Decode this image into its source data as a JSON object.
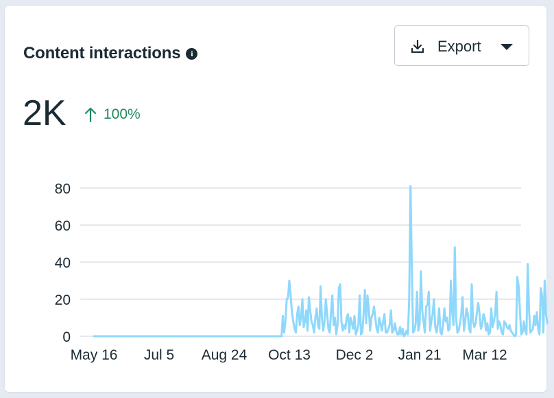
{
  "card": {
    "title": "Content interactions",
    "info_icon": "info-icon",
    "export_label": "Export",
    "export_icon": "download-icon",
    "export_caret_icon": "caret-down-icon"
  },
  "metric": {
    "value": "2K",
    "change": "100%",
    "change_icon": "arrow-up-icon",
    "change_color": "#1f8a5e"
  },
  "colors": {
    "line": "#8fd8fb",
    "grid": "#d7dbe0",
    "text": "#1c2b33"
  },
  "chart_data": {
    "type": "line",
    "title": "",
    "xlabel": "",
    "ylabel": "",
    "ylim": [
      0,
      80
    ],
    "yticks": [
      0,
      20,
      40,
      60,
      80
    ],
    "x_tick_labels": [
      {
        "label": "May 16",
        "day": 0
      },
      {
        "label": "Jul 5",
        "day": 50
      },
      {
        "label": "Aug 24",
        "day": 100
      },
      {
        "label": "Oct 13",
        "day": 150
      },
      {
        "label": "Dec 2",
        "day": 200
      },
      {
        "label": "Jan 21",
        "day": 250
      },
      {
        "label": "Mar 12",
        "day": 300
      }
    ],
    "series": [
      {
        "name": "Content interactions",
        "start_day": 0,
        "values": [
          0,
          0,
          0,
          0,
          0,
          0,
          0,
          0,
          0,
          0,
          0,
          0,
          0,
          0,
          0,
          0,
          0,
          0,
          0,
          0,
          0,
          0,
          0,
          0,
          0,
          0,
          0,
          0,
          0,
          0,
          0,
          0,
          0,
          0,
          0,
          0,
          0,
          0,
          0,
          0,
          0,
          0,
          0,
          0,
          0,
          0,
          0,
          0,
          0,
          0,
          0,
          0,
          0,
          0,
          0,
          0,
          0,
          0,
          0,
          0,
          0,
          0,
          0,
          0,
          0,
          0,
          0,
          0,
          0,
          0,
          0,
          0,
          0,
          0,
          0,
          0,
          0,
          0,
          0,
          0,
          0,
          0,
          0,
          0,
          0,
          0,
          0,
          0,
          0,
          0,
          0,
          0,
          0,
          0,
          0,
          0,
          0,
          0,
          0,
          0,
          0,
          0,
          0,
          0,
          0,
          0,
          0,
          0,
          0,
          0,
          0,
          0,
          0,
          0,
          0,
          0,
          0,
          0,
          0,
          0,
          0,
          0,
          0,
          0,
          0,
          0,
          0,
          0,
          0,
          0,
          0,
          0,
          0,
          0,
          0,
          0,
          0,
          0,
          0,
          0,
          0,
          0,
          0,
          0,
          0,
          11,
          2,
          8,
          20,
          21,
          30,
          22,
          13,
          8,
          4,
          2,
          12,
          16,
          6,
          10,
          20,
          5,
          8,
          14,
          3,
          21,
          14,
          8,
          6,
          2,
          10,
          15,
          6,
          4,
          27,
          10,
          3,
          8,
          20,
          12,
          4,
          2,
          13,
          22,
          6,
          10,
          1,
          6,
          26,
          28,
          8,
          3,
          6,
          4,
          10,
          12,
          2,
          10,
          7,
          4,
          11,
          1,
          3,
          6,
          22,
          1,
          2,
          12,
          25,
          7,
          22,
          15,
          3,
          10,
          12,
          16,
          10,
          4,
          2,
          10,
          7,
          3,
          8,
          12,
          2,
          2,
          4,
          6,
          14,
          2,
          3,
          7,
          3,
          1,
          1,
          5,
          1,
          4,
          0,
          1,
          3,
          1,
          20,
          81,
          38,
          2,
          3,
          7,
          24,
          3,
          6,
          35,
          14,
          8,
          2,
          16,
          17,
          24,
          3,
          8,
          12,
          20,
          5,
          2,
          7,
          15,
          2,
          1,
          6,
          15,
          8,
          10,
          3,
          4,
          30,
          13,
          6,
          48,
          10,
          2,
          3,
          7,
          12,
          21,
          3,
          8,
          15,
          12,
          4,
          2,
          28,
          8,
          5,
          7,
          13,
          18,
          12,
          4,
          6,
          12,
          10,
          3,
          7,
          1,
          2,
          15,
          5,
          8,
          12,
          24,
          4,
          8,
          6,
          2,
          1,
          8,
          7,
          5,
          4,
          6,
          3,
          2,
          1,
          0,
          1,
          32,
          27,
          14,
          1,
          2,
          8,
          3,
          1,
          39,
          14,
          2,
          3,
          4,
          11,
          6,
          13,
          4,
          1,
          26,
          22,
          2,
          30,
          12,
          7
        ]
      }
    ]
  }
}
